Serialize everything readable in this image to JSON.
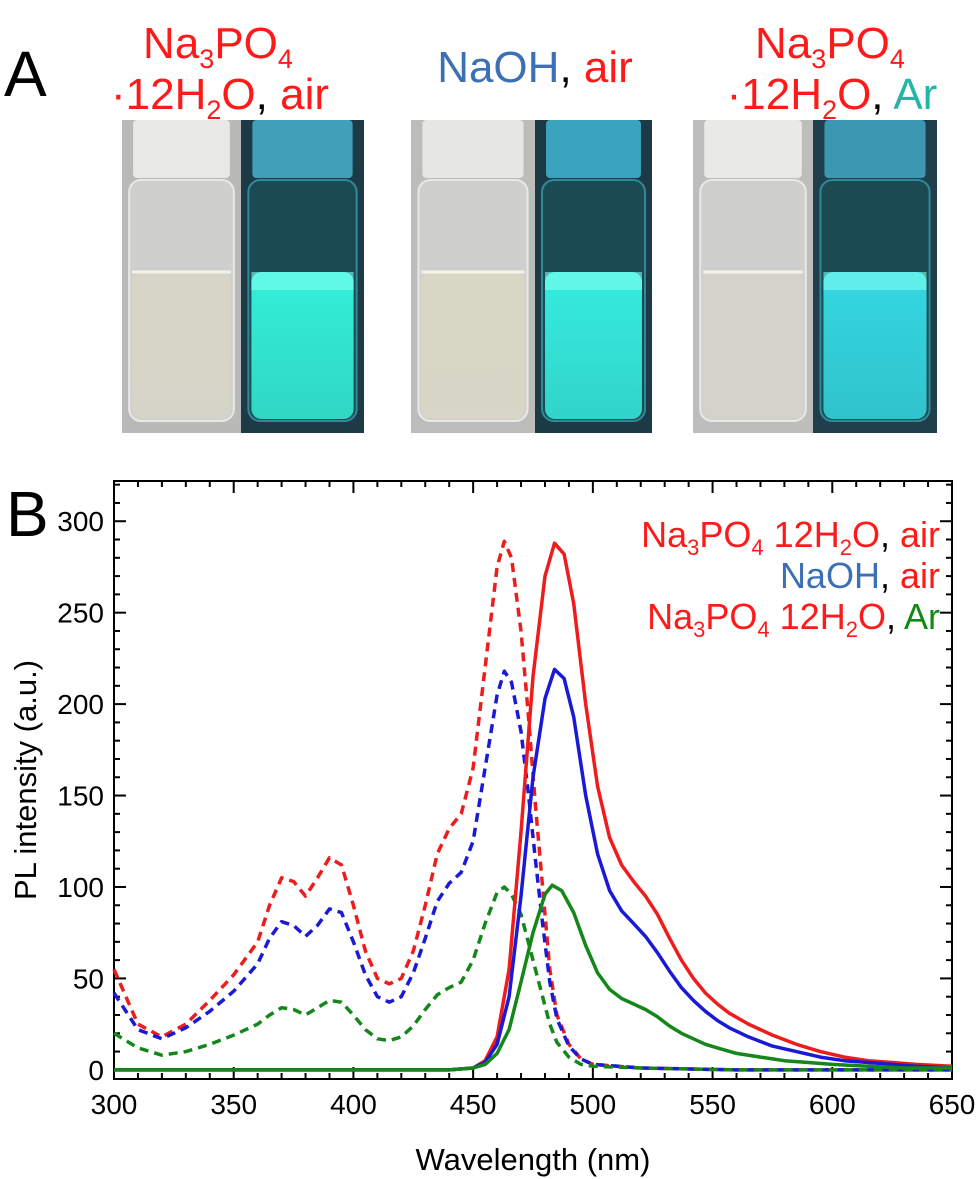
{
  "panel_a": {
    "label": "A",
    "groups": [
      {
        "title": [
          [
            {
              "t": "Na",
              "c": "red"
            },
            {
              "t": "3",
              "c": "red",
              "sub": true
            },
            {
              "t": "PO",
              "c": "red"
            },
            {
              "t": "4",
              "c": "red",
              "sub": true
            }
          ],
          [
            {
              "t": "·12H",
              "c": "red"
            },
            {
              "t": "2",
              "c": "red",
              "sub": true
            },
            {
              "t": "O",
              "c": "red"
            },
            {
              "t": ", ",
              "c": "black"
            },
            {
              "t": "air",
              "c": "red"
            }
          ]
        ],
        "ambient": {
          "cap": "#e8e8e6",
          "liquid": "#d6d5c8",
          "background": "#b9b9b7"
        },
        "uv": {
          "cap": "#3fa0b8",
          "liquid": "#33f0d8",
          "background": "#1d3b46"
        }
      },
      {
        "title": [
          [
            {
              "t": "NaOH",
              "c": "blue"
            },
            {
              "t": ", ",
              "c": "black"
            },
            {
              "t": "air",
              "c": "red"
            }
          ]
        ],
        "ambient": {
          "cap": "#e6e6e4",
          "liquid": "#d8d7c6",
          "background": "#bcbcba"
        },
        "uv": {
          "cap": "#3aa3bd",
          "liquid": "#35ecdf",
          "background": "#1b3a46"
        }
      },
      {
        "title": [
          [
            {
              "t": "Na",
              "c": "red"
            },
            {
              "t": "3",
              "c": "red",
              "sub": true
            },
            {
              "t": "PO",
              "c": "red"
            },
            {
              "t": "4",
              "c": "red",
              "sub": true
            }
          ],
          [
            {
              "t": "·12H",
              "c": "red"
            },
            {
              "t": "2",
              "c": "red",
              "sub": true
            },
            {
              "t": "O",
              "c": "red"
            },
            {
              "t": ", ",
              "c": "black"
            },
            {
              "t": "Ar",
              "c": "teal"
            }
          ]
        ],
        "ambient": {
          "cap": "#e9e9e7",
          "liquid": "#d4d3c9",
          "background": "#bdbdbb"
        },
        "uv": {
          "cap": "#3c97b2",
          "liquid": "#34d8e2",
          "background": "#1e3f4b"
        }
      }
    ]
  },
  "panel_b": {
    "label": "B",
    "legend": [
      [
        {
          "t": "Na",
          "c": "red"
        },
        {
          "t": "3",
          "c": "red",
          "sub": true
        },
        {
          "t": "PO",
          "c": "red"
        },
        {
          "t": "4",
          "c": "red",
          "sub": true
        },
        {
          "t": " 12H",
          "c": "red"
        },
        {
          "t": "2",
          "c": "red",
          "sub": true
        },
        {
          "t": "O",
          "c": "red"
        },
        {
          "t": ", ",
          "c": "black"
        },
        {
          "t": "air",
          "c": "red"
        }
      ],
      [
        {
          "t": "NaOH",
          "c": "blue"
        },
        {
          "t": ", ",
          "c": "black"
        },
        {
          "t": "air",
          "c": "red"
        }
      ],
      [
        {
          "t": "Na",
          "c": "red"
        },
        {
          "t": "3",
          "c": "red",
          "sub": true
        },
        {
          "t": "PO",
          "c": "red"
        },
        {
          "t": "4",
          "c": "red",
          "sub": true
        },
        {
          "t": " 12H",
          "c": "red"
        },
        {
          "t": "2",
          "c": "red",
          "sub": true
        },
        {
          "t": "O",
          "c": "red"
        },
        {
          "t": ", ",
          "c": "black"
        },
        {
          "t": "Ar",
          "c": "green"
        }
      ]
    ]
  },
  "colors": {
    "red": "#ff1a1a",
    "blue": "#3b6fb6",
    "teal": "#22b5a8",
    "green": "#128a12",
    "black": "#000000",
    "line_red": "#ee1c1c",
    "line_blue": "#1a1ad6",
    "line_green": "#15861a"
  },
  "chart_data": {
    "type": "line",
    "xlabel": "Wavelength (nm)",
    "ylabel": "PL intensity (a.u.)",
    "xlim": [
      300,
      650
    ],
    "ylim": [
      -5,
      322
    ],
    "xticks": [
      300,
      350,
      400,
      450,
      500,
      550,
      600,
      650
    ],
    "yticks": [
      0,
      50,
      100,
      150,
      200,
      250,
      300
    ],
    "x_minor_step": 10,
    "y_minor_step": 10,
    "grid": false,
    "legend_position": "top-right",
    "series": [
      {
        "group": "Na3PO4·12H2O, air",
        "kind": "excitation",
        "dash": true,
        "color": "line_red",
        "points": [
          [
            300,
            55
          ],
          [
            310,
            25
          ],
          [
            320,
            18
          ],
          [
            330,
            25
          ],
          [
            340,
            38
          ],
          [
            350,
            52
          ],
          [
            360,
            70
          ],
          [
            365,
            90
          ],
          [
            370,
            105
          ],
          [
            375,
            103
          ],
          [
            380,
            95
          ],
          [
            385,
            105
          ],
          [
            390,
            116
          ],
          [
            395,
            112
          ],
          [
            400,
            90
          ],
          [
            405,
            65
          ],
          [
            410,
            50
          ],
          [
            415,
            47
          ],
          [
            420,
            50
          ],
          [
            425,
            65
          ],
          [
            430,
            90
          ],
          [
            435,
            118
          ],
          [
            440,
            132
          ],
          [
            445,
            140
          ],
          [
            450,
            165
          ],
          [
            455,
            220
          ],
          [
            460,
            275
          ],
          [
            463,
            289
          ],
          [
            466,
            280
          ],
          [
            470,
            240
          ],
          [
            473,
            195
          ],
          [
            476,
            145
          ],
          [
            479,
            100
          ],
          [
            482,
            55
          ],
          [
            485,
            30
          ],
          [
            490,
            14
          ],
          [
            495,
            6
          ],
          [
            500,
            3
          ],
          [
            520,
            1
          ],
          [
            560,
            0
          ],
          [
            600,
            0
          ],
          [
            650,
            0
          ]
        ]
      },
      {
        "group": "NaOH, air",
        "kind": "excitation",
        "dash": true,
        "color": "line_blue",
        "points": [
          [
            300,
            42
          ],
          [
            310,
            22
          ],
          [
            320,
            17
          ],
          [
            330,
            23
          ],
          [
            340,
            32
          ],
          [
            350,
            43
          ],
          [
            360,
            58
          ],
          [
            365,
            72
          ],
          [
            370,
            81
          ],
          [
            375,
            79
          ],
          [
            380,
            73
          ],
          [
            385,
            79
          ],
          [
            390,
            88
          ],
          [
            395,
            86
          ],
          [
            400,
            70
          ],
          [
            405,
            52
          ],
          [
            410,
            40
          ],
          [
            415,
            37
          ],
          [
            420,
            40
          ],
          [
            425,
            53
          ],
          [
            430,
            72
          ],
          [
            435,
            92
          ],
          [
            440,
            102
          ],
          [
            445,
            108
          ],
          [
            450,
            125
          ],
          [
            455,
            165
          ],
          [
            460,
            205
          ],
          [
            463,
            218
          ],
          [
            466,
            212
          ],
          [
            470,
            185
          ],
          [
            473,
            152
          ],
          [
            476,
            115
          ],
          [
            479,
            80
          ],
          [
            482,
            48
          ],
          [
            485,
            28
          ],
          [
            490,
            13
          ],
          [
            495,
            6
          ],
          [
            500,
            3
          ],
          [
            520,
            1
          ],
          [
            560,
            0
          ],
          [
            600,
            0
          ],
          [
            650,
            0
          ]
        ]
      },
      {
        "group": "Na3PO4·12H2O, Ar",
        "kind": "excitation",
        "dash": true,
        "color": "line_green",
        "points": [
          [
            300,
            20
          ],
          [
            310,
            12
          ],
          [
            320,
            8
          ],
          [
            330,
            10
          ],
          [
            340,
            14
          ],
          [
            350,
            19
          ],
          [
            360,
            25
          ],
          [
            365,
            30
          ],
          [
            370,
            34
          ],
          [
            375,
            33
          ],
          [
            380,
            30
          ],
          [
            385,
            34
          ],
          [
            390,
            38
          ],
          [
            395,
            37
          ],
          [
            400,
            30
          ],
          [
            405,
            22
          ],
          [
            410,
            17
          ],
          [
            415,
            16
          ],
          [
            420,
            18
          ],
          [
            425,
            24
          ],
          [
            430,
            33
          ],
          [
            435,
            41
          ],
          [
            440,
            45
          ],
          [
            445,
            48
          ],
          [
            450,
            60
          ],
          [
            455,
            80
          ],
          [
            460,
            97
          ],
          [
            463,
            100
          ],
          [
            466,
            96
          ],
          [
            470,
            85
          ],
          [
            473,
            70
          ],
          [
            476,
            55
          ],
          [
            479,
            40
          ],
          [
            482,
            25
          ],
          [
            485,
            15
          ],
          [
            490,
            7
          ],
          [
            495,
            3
          ],
          [
            500,
            2
          ],
          [
            520,
            1
          ],
          [
            560,
            0
          ],
          [
            600,
            0
          ],
          [
            650,
            0
          ]
        ]
      },
      {
        "group": "Na3PO4·12H2O, air",
        "kind": "emission",
        "dash": false,
        "color": "line_red",
        "points": [
          [
            300,
            0
          ],
          [
            440,
            0
          ],
          [
            450,
            1
          ],
          [
            455,
            5
          ],
          [
            460,
            18
          ],
          [
            465,
            55
          ],
          [
            470,
            130
          ],
          [
            475,
            215
          ],
          [
            480,
            270
          ],
          [
            484,
            288
          ],
          [
            488,
            282
          ],
          [
            492,
            255
          ],
          [
            497,
            200
          ],
          [
            502,
            155
          ],
          [
            507,
            127
          ],
          [
            512,
            112
          ],
          [
            517,
            103
          ],
          [
            522,
            95
          ],
          [
            527,
            85
          ],
          [
            532,
            72
          ],
          [
            537,
            60
          ],
          [
            542,
            50
          ],
          [
            547,
            42
          ],
          [
            552,
            36
          ],
          [
            557,
            31
          ],
          [
            565,
            25
          ],
          [
            575,
            19
          ],
          [
            585,
            14
          ],
          [
            595,
            10
          ],
          [
            605,
            7
          ],
          [
            615,
            5
          ],
          [
            625,
            4
          ],
          [
            635,
            3
          ],
          [
            650,
            2
          ]
        ]
      },
      {
        "group": "NaOH, air",
        "kind": "emission",
        "dash": false,
        "color": "line_blue",
        "points": [
          [
            300,
            0
          ],
          [
            440,
            0
          ],
          [
            450,
            1
          ],
          [
            455,
            4
          ],
          [
            460,
            14
          ],
          [
            465,
            40
          ],
          [
            470,
            95
          ],
          [
            475,
            160
          ],
          [
            480,
            203
          ],
          [
            484,
            219
          ],
          [
            488,
            214
          ],
          [
            492,
            193
          ],
          [
            497,
            150
          ],
          [
            502,
            118
          ],
          [
            507,
            98
          ],
          [
            512,
            87
          ],
          [
            517,
            80
          ],
          [
            522,
            73
          ],
          [
            527,
            64
          ],
          [
            532,
            54
          ],
          [
            537,
            45
          ],
          [
            542,
            38
          ],
          [
            547,
            32
          ],
          [
            552,
            27
          ],
          [
            557,
            23
          ],
          [
            565,
            18
          ],
          [
            575,
            13
          ],
          [
            585,
            10
          ],
          [
            595,
            7
          ],
          [
            605,
            5
          ],
          [
            615,
            4
          ],
          [
            625,
            3
          ],
          [
            635,
            2
          ],
          [
            650,
            1
          ]
        ]
      },
      {
        "group": "Na3PO4·12H2O, Ar",
        "kind": "emission",
        "dash": false,
        "color": "line_green",
        "points": [
          [
            300,
            0
          ],
          [
            440,
            0
          ],
          [
            450,
            1
          ],
          [
            455,
            3
          ],
          [
            460,
            9
          ],
          [
            465,
            22
          ],
          [
            470,
            48
          ],
          [
            475,
            75
          ],
          [
            480,
            96
          ],
          [
            483,
            101
          ],
          [
            487,
            98
          ],
          [
            492,
            86
          ],
          [
            497,
            68
          ],
          [
            502,
            53
          ],
          [
            507,
            44
          ],
          [
            512,
            39
          ],
          [
            517,
            36
          ],
          [
            522,
            33
          ],
          [
            527,
            29
          ],
          [
            532,
            24
          ],
          [
            537,
            20
          ],
          [
            542,
            17
          ],
          [
            547,
            14
          ],
          [
            552,
            12
          ],
          [
            560,
            9
          ],
          [
            570,
            7
          ],
          [
            580,
            5
          ],
          [
            590,
            4
          ],
          [
            600,
            3
          ],
          [
            615,
            2
          ],
          [
            630,
            1
          ],
          [
            650,
            1
          ]
        ]
      }
    ]
  }
}
